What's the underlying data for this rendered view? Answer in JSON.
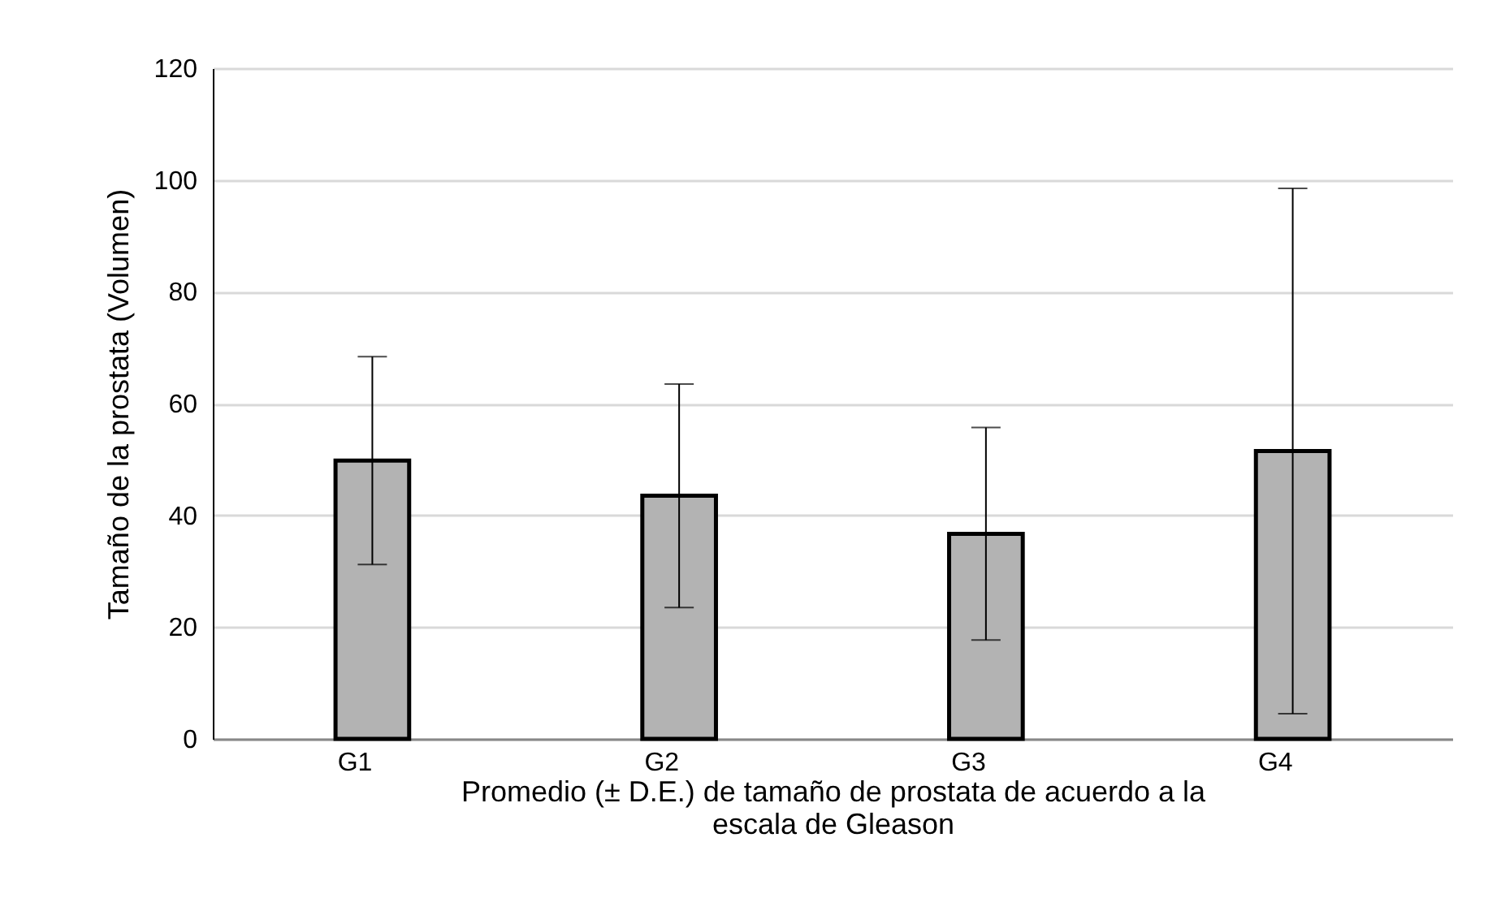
{
  "chart_data": {
    "type": "bar",
    "xlabel": "Promedio (± D.E.)  de tamaño de prostata  de acuerdo a la  escala de Gleason",
    "ylabel": "Tamaño de  la prostata (Volumen)",
    "categories": [
      "G1",
      "G2",
      "G3",
      "G4"
    ],
    "series": [
      {
        "color": "#b3b3b3",
        "values": [
          49.8,
          43.5,
          36.7,
          51.5
        ],
        "errors": [
          18.6,
          20,
          19,
          47
        ]
      }
    ],
    "ylim": [
      0,
      120
    ],
    "yticks": [
      0,
      20,
      40,
      60,
      80,
      100,
      120
    ],
    "grid": "y"
  }
}
